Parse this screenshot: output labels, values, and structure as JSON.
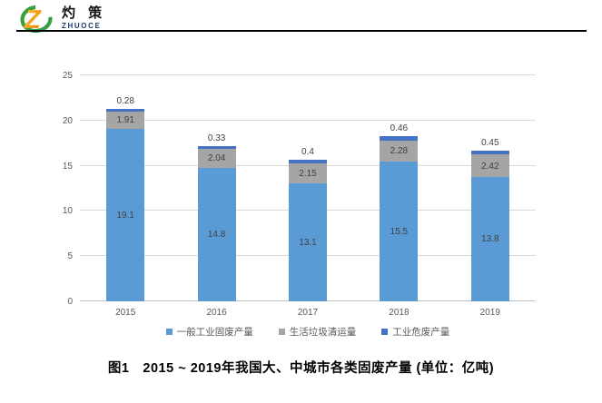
{
  "header": {
    "logo_cn": "灼 策",
    "logo_en": "ZHUOCE",
    "logo_colors": {
      "ring_green": "#389E3C",
      "z_orange": "#F7A800",
      "z_orange_dark": "#E97C00",
      "en_navy": "#1F3B66"
    }
  },
  "caption": {
    "text": "图1　2015 ~ 2019年我国大、中城市各类固废产量 (单位：亿吨)"
  },
  "chart_data": {
    "type": "bar",
    "subtype": "stacked-vertical",
    "title": "",
    "xlabel": "",
    "ylabel": "",
    "unit": "亿吨",
    "categories": [
      "2015",
      "2016",
      "2017",
      "2018",
      "2019"
    ],
    "series": [
      {
        "name": "一般工业固废产量",
        "color": "#5B9BD5",
        "values": [
          19.1,
          14.8,
          13.1,
          15.5,
          13.8
        ],
        "labels": [
          "19.1",
          "14.8",
          "13.1",
          "15.5",
          "13.8"
        ],
        "label_placement": "inside"
      },
      {
        "name": "生活垃圾清运量",
        "color": "#A5A5A5",
        "values": [
          1.91,
          2.04,
          2.15,
          2.28,
          2.42
        ],
        "labels": [
          "1.91",
          "2.04",
          "2.15",
          "2.28",
          "2.42"
        ],
        "label_placement": "inside"
      },
      {
        "name": "工业危废产量",
        "color": "#4472C4",
        "values": [
          0.28,
          0.33,
          0.4,
          0.46,
          0.45
        ],
        "labels": [
          "0.28",
          "0.33",
          "0.4",
          "0.46",
          "0.45"
        ],
        "label_placement": "above"
      }
    ],
    "y_ticks": [
      "0",
      "5",
      "10",
      "15",
      "20",
      "25"
    ],
    "ylim": [
      0,
      25
    ],
    "grid": "horizontal",
    "gridline_color": "#D9D9D9",
    "axis_label_color": "#595959",
    "data_label_color": "#404040",
    "legend_position": "bottom"
  }
}
